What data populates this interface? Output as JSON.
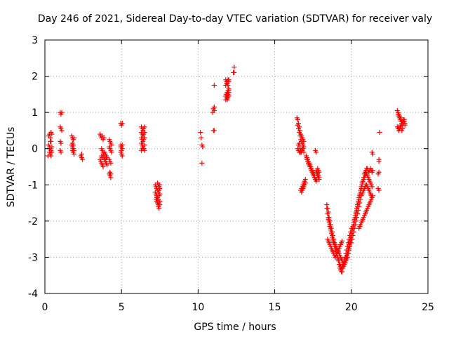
{
  "chart_data": {
    "type": "scatter",
    "title": "Day 246 of 2021, Sidereal Day-to-day VTEC variation (SDTVAR) for receiver valy",
    "xlabel": "GPS time / hours",
    "ylabel": "SDTVAR / TECUs",
    "xlim": [
      0,
      25
    ],
    "ylim": [
      -4,
      3
    ],
    "xticks": [
      0,
      5,
      10,
      15,
      20,
      25
    ],
    "yticks": [
      -4,
      -3,
      -2,
      -1,
      0,
      1,
      2,
      3
    ],
    "grid": true,
    "marker": "plus",
    "color": "#ff0000",
    "series": [
      {
        "name": "SDTVAR",
        "x": [
          0.2,
          0.25,
          0.3,
          0.35,
          0.4,
          0.45,
          0.25,
          0.3,
          0.35,
          0.4,
          0.45,
          0.3,
          0.35,
          0.4,
          0.45,
          0.3,
          0.35,
          0.4,
          1.0,
          1.05,
          1.1,
          1.0,
          1.05,
          1.1,
          1.0,
          1.05,
          1.0,
          1.05,
          1.75,
          1.8,
          1.85,
          1.9,
          1.75,
          1.8,
          1.85,
          1.9,
          1.8,
          1.85,
          1.9,
          1.8,
          1.85,
          2.35,
          2.4,
          2.45,
          2.4,
          3.6,
          3.65,
          3.7,
          3.75,
          3.8,
          3.85,
          3.9,
          3.95,
          4.0,
          4.05,
          3.6,
          3.65,
          3.7,
          3.75,
          3.8,
          3.85,
          3.9,
          3.95,
          4.0,
          4.05,
          3.7,
          3.75,
          3.8,
          3.85,
          3.9,
          3.95,
          4.0,
          3.7,
          3.75,
          3.8,
          3.85,
          4.2,
          4.25,
          4.3,
          4.35,
          4.2,
          4.25,
          4.3,
          4.35,
          4.2,
          4.25,
          4.3,
          4.2,
          4.25,
          4.3,
          4.25,
          4.3,
          4.95,
          5.0,
          5.05,
          4.95,
          5.0,
          5.05,
          4.95,
          5.0,
          5.05,
          4.95,
          5.0,
          5.05,
          6.3,
          6.35,
          6.4,
          6.45,
          6.5,
          6.3,
          6.35,
          6.4,
          6.45,
          6.5,
          6.3,
          6.35,
          6.4,
          6.45,
          6.5,
          6.3,
          6.35,
          6.4,
          6.45,
          6.5,
          6.3,
          6.35,
          6.4,
          6.45,
          6.5,
          7.2,
          7.25,
          7.3,
          7.35,
          7.4,
          7.45,
          7.5,
          7.2,
          7.25,
          7.3,
          7.35,
          7.4,
          7.45,
          7.5,
          7.25,
          7.3,
          7.35,
          7.4,
          7.45,
          7.5,
          7.3,
          7.35,
          7.4,
          7.45,
          7.5,
          7.35,
          7.4,
          7.45,
          7.5,
          10.15,
          10.2,
          10.25,
          10.3,
          10.25,
          10.95,
          11.0,
          11.05,
          11.05,
          11.05,
          11.0,
          11.05,
          11.0,
          11.8,
          11.85,
          11.9,
          11.95,
          12.0,
          11.8,
          11.85,
          11.9,
          11.95,
          12.0,
          11.8,
          11.85,
          11.9,
          11.95,
          12.0,
          11.8,
          11.85,
          11.9,
          11.95,
          12.0,
          11.85,
          11.9,
          11.95,
          12.0,
          11.85,
          11.9,
          11.95,
          12.0,
          11.9,
          11.95,
          12.0,
          12.3,
          12.35,
          12.35,
          16.45,
          16.5,
          16.55,
          16.6,
          16.65,
          16.7,
          16.75,
          16.8,
          16.85,
          16.9,
          16.5,
          16.55,
          16.6,
          16.65,
          16.7,
          16.75,
          16.8,
          16.85,
          16.9,
          16.5,
          16.55,
          16.6,
          16.65,
          16.7,
          16.75,
          16.8,
          16.85,
          16.9,
          16.55,
          16.6,
          16.65,
          16.7,
          16.75,
          16.8,
          16.7,
          16.75,
          16.8,
          16.85,
          16.9,
          16.95,
          17.0,
          16.75,
          16.8,
          16.85,
          16.9,
          16.95,
          17.0,
          17.05,
          17.1,
          17.15,
          17.2,
          17.25,
          17.3,
          17.35,
          17.4,
          17.45,
          17.5,
          17.55,
          17.6,
          17.1,
          17.15,
          17.2,
          17.25,
          17.3,
          17.35,
          17.4,
          17.45,
          17.5,
          17.55,
          17.6,
          17.65,
          17.2,
          17.25,
          17.3,
          17.35,
          17.4,
          17.45,
          17.5,
          17.55,
          17.6,
          17.65,
          17.7,
          17.75,
          17.65,
          17.7,
          17.75,
          17.8,
          17.85,
          17.9,
          17.7,
          17.75,
          17.8,
          17.85,
          17.9,
          17.75,
          17.8,
          17.85,
          17.9,
          17.8,
          17.85,
          18.4,
          18.45,
          18.5,
          18.55,
          18.6,
          18.65,
          18.7,
          18.75,
          18.8,
          18.85,
          18.9,
          18.95,
          19.0,
          19.05,
          19.1,
          19.15,
          19.2,
          19.25,
          19.3,
          19.35,
          19.4,
          19.45,
          19.5,
          19.55,
          19.6,
          19.65,
          19.7,
          19.75,
          19.8,
          19.85,
          19.9,
          19.95,
          20.0,
          18.4,
          18.45,
          18.5,
          18.55,
          18.6,
          18.65,
          18.7,
          18.75,
          18.8,
          18.85,
          18.9,
          18.95,
          19.0,
          19.05,
          19.1,
          19.15,
          19.2,
          19.25,
          19.3,
          19.35,
          19.4,
          19.45,
          19.5,
          19.55,
          19.6,
          19.65,
          19.7,
          19.75,
          19.8,
          19.85,
          19.9,
          19.95,
          20.0,
          18.5,
          18.55,
          18.6,
          18.65,
          18.7,
          18.75,
          18.8,
          18.85,
          18.9,
          18.95,
          19.0,
          19.05,
          19.1,
          19.15,
          19.2,
          19.25,
          19.3,
          19.35,
          19.4,
          19.45,
          19.5,
          19.55,
          19.6,
          19.65,
          19.7,
          19.75,
          19.8,
          19.85,
          19.9,
          18.45,
          18.5,
          18.55,
          18.6,
          18.65,
          18.7,
          18.75,
          18.8,
          18.85,
          18.9,
          18.95,
          19.0,
          19.05,
          19.1,
          19.15,
          19.2,
          19.25,
          19.3,
          19.35,
          19.4,
          19.7,
          19.75,
          19.8,
          19.85,
          19.9,
          19.95,
          20.0,
          20.05,
          20.1,
          20.15,
          20.2,
          20.25,
          20.3,
          20.35,
          20.4,
          20.45,
          20.5,
          20.55,
          20.6,
          20.65,
          20.7,
          20.75,
          20.8,
          20.85,
          20.9,
          20.95,
          21.0,
          21.05,
          21.1,
          21.15,
          21.2,
          21.25,
          21.3,
          21.35,
          21.4,
          19.8,
          19.85,
          19.9,
          19.95,
          20.0,
          20.05,
          20.1,
          20.15,
          20.2,
          20.25,
          20.3,
          20.35,
          20.4,
          20.45,
          20.5,
          20.55,
          20.6,
          20.65,
          20.7,
          20.75,
          20.8,
          20.85,
          20.9,
          20.95,
          21.0,
          21.05,
          21.1,
          21.15,
          21.2,
          21.25,
          21.3,
          21.35,
          20.0,
          20.05,
          20.1,
          20.15,
          20.2,
          20.25,
          20.3,
          20.35,
          20.4,
          20.45,
          20.5,
          20.55,
          20.6,
          20.65,
          20.7,
          20.75,
          20.8,
          20.85,
          20.9,
          20.95,
          21.0,
          21.05,
          21.1,
          21.15,
          21.2,
          21.25,
          21.3,
          21.35,
          20.5,
          20.55,
          20.6,
          20.65,
          20.7,
          20.75,
          20.8,
          20.85,
          20.9,
          20.95,
          21.0,
          21.05,
          21.1,
          21.15,
          21.2,
          21.25,
          21.3,
          21.35,
          21.4,
          21.35,
          21.4,
          21.85,
          21.8,
          21.8,
          21.75,
          21.8,
          21.75,
          21.8,
          23.0,
          23.05,
          23.1,
          23.15,
          23.2,
          23.25,
          23.3,
          23.35,
          23.4,
          23.45,
          23.5,
          23.05,
          23.1,
          23.15,
          23.2,
          23.25,
          23.3,
          23.35,
          23.4,
          23.45,
          23.5,
          23.1,
          23.15,
          23.2,
          23.25,
          23.3,
          23.35,
          23.4,
          23.45,
          23.0,
          23.05,
          23.1,
          23.15,
          23.2,
          23.25,
          23.3,
          23.35
        ],
        "y": [
          -0.2,
          0.35,
          0.4,
          0.3,
          0.2,
          0.4,
          0.1,
          0.05,
          0.0,
          -0.05,
          -0.1,
          -0.1,
          -0.15,
          -0.2,
          0.05,
          0.0,
          0.2,
          0.45,
          1.0,
          0.95,
          1.0,
          0.6,
          0.55,
          0.5,
          0.2,
          0.15,
          -0.05,
          -0.1,
          0.35,
          0.3,
          0.25,
          0.3,
          0.1,
          0.05,
          0.0,
          -0.05,
          -0.05,
          -0.1,
          -0.15,
          0.15,
          0.1,
          -0.2,
          -0.25,
          -0.3,
          -0.15,
          0.4,
          0.35,
          0.3,
          0.35,
          0.25,
          0.3,
          -0.1,
          -0.15,
          -0.2,
          -0.25,
          -0.3,
          -0.35,
          -0.4,
          -0.45,
          -0.5,
          -0.25,
          -0.3,
          -0.35,
          -0.4,
          -0.45,
          -0.2,
          -0.25,
          -0.15,
          -0.2,
          -0.3,
          -0.35,
          -0.25,
          0.0,
          -0.05,
          -0.1,
          -0.15,
          0.25,
          0.2,
          0.15,
          0.1,
          0.05,
          0.0,
          -0.05,
          -0.1,
          -0.3,
          -0.35,
          -0.4,
          -0.7,
          -0.75,
          -0.8,
          -0.65,
          -0.7,
          0.7,
          0.65,
          0.7,
          0.1,
          0.05,
          0.0,
          -0.1,
          -0.15,
          -0.2,
          0.05,
          -0.05,
          0.1,
          0.6,
          0.55,
          0.5,
          0.55,
          0.6,
          0.45,
          0.4,
          0.35,
          0.4,
          0.45,
          0.3,
          0.25,
          0.2,
          0.25,
          0.3,
          0.15,
          0.1,
          0.05,
          0.0,
          0.1,
          -0.05,
          0.0,
          0.05,
          0.0,
          -0.05,
          -1.0,
          -1.05,
          -1.1,
          -1.15,
          -1.2,
          -1.15,
          -1.1,
          -1.2,
          -1.25,
          -1.3,
          -1.35,
          -1.4,
          -1.3,
          -1.25,
          -1.4,
          -1.45,
          -1.5,
          -1.55,
          -1.5,
          -1.45,
          -1.35,
          -1.4,
          -1.6,
          -1.65,
          -1.55,
          -0.95,
          -1.0,
          -1.05,
          -1.0,
          0.45,
          0.3,
          0.1,
          0.05,
          -0.4,
          1.0,
          1.1,
          1.15,
          1.75,
          1.05,
          0.5,
          0.5,
          1.1,
          1.35,
          1.4,
          1.45,
          1.5,
          1.55,
          1.45,
          1.5,
          1.55,
          1.6,
          1.45,
          1.75,
          1.8,
          1.85,
          1.9,
          1.85,
          1.9,
          1.85,
          1.8,
          1.75,
          1.9,
          1.4,
          1.35,
          1.4,
          1.45,
          1.5,
          1.55,
          1.6,
          1.65,
          1.5,
          1.55,
          1.6,
          2.1,
          2.1,
          2.25,
          0.85,
          0.8,
          0.7,
          0.6,
          0.5,
          0.4,
          0.35,
          0.3,
          0.25,
          0.2,
          0.65,
          0.55,
          0.45,
          0.35,
          0.25,
          0.2,
          0.15,
          0.1,
          0.05,
          0.0,
          0.1,
          0.15,
          0.05,
          -0.05,
          -0.1,
          -0.05,
          0.0,
          -0.1,
          -0.05,
          -0.1,
          -0.05,
          -0.1,
          -0.05,
          0.0,
          -1.15,
          -1.1,
          -1.05,
          -1.0,
          -0.95,
          -0.9,
          -0.85,
          -1.2,
          -1.15,
          -1.1,
          -1.05,
          -1.0,
          -0.95,
          -0.2,
          -0.25,
          -0.3,
          -0.35,
          -0.4,
          -0.45,
          -0.5,
          -0.55,
          -0.6,
          -0.65,
          -0.7,
          -0.75,
          -0.3,
          -0.35,
          -0.4,
          -0.45,
          -0.5,
          -0.55,
          -0.6,
          -0.65,
          -0.7,
          -0.75,
          -0.8,
          -0.85,
          -0.4,
          -0.45,
          -0.5,
          -0.55,
          -0.6,
          -0.65,
          -0.7,
          -0.75,
          -0.8,
          -0.85,
          -0.9,
          -0.85,
          -0.05,
          -0.1,
          -0.65,
          -0.7,
          -0.75,
          -0.8,
          -0.6,
          -0.65,
          -0.55,
          -0.6,
          -0.65,
          -0.7,
          -0.75,
          -0.8,
          -0.85,
          -0.7,
          -0.75,
          -1.55,
          -1.65,
          -1.75,
          -1.9,
          -2.0,
          -2.1,
          -2.2,
          -2.3,
          -2.4,
          -2.5,
          -2.6,
          -2.7,
          -2.8,
          -2.9,
          -3.0,
          -3.1,
          -3.2,
          -3.3,
          -3.35,
          -3.4,
          -3.4,
          -3.3,
          -3.25,
          -3.2,
          -3.15,
          -3.1,
          -3.05,
          -3.0,
          -2.9,
          -2.8,
          -2.7,
          -2.6,
          -2.5,
          -1.65,
          -1.8,
          -1.95,
          -2.05,
          -2.15,
          -2.25,
          -2.35,
          -2.45,
          -2.55,
          -2.6,
          -2.7,
          -2.8,
          -2.85,
          -2.9,
          -3.0,
          -3.05,
          -3.1,
          -3.2,
          -3.25,
          -3.3,
          -3.25,
          -3.2,
          -3.15,
          -3.05,
          -3.0,
          -2.9,
          -2.8,
          -2.7,
          -2.6,
          -2.5,
          -2.4,
          -2.3,
          -2.2,
          -1.9,
          -2.0,
          -2.1,
          -2.2,
          -2.3,
          -2.4,
          -2.5,
          -2.55,
          -2.6,
          -2.65,
          -2.7,
          -2.75,
          -2.8,
          -2.85,
          -2.9,
          -2.95,
          -3.0,
          -3.05,
          -3.1,
          -3.15,
          -3.2,
          -3.15,
          -3.1,
          -3.0,
          -2.95,
          -2.9,
          -2.8,
          -2.75,
          -2.7,
          -2.5,
          -2.55,
          -2.6,
          -2.65,
          -2.7,
          -2.75,
          -2.8,
          -2.85,
          -2.9,
          -2.95,
          -3.0,
          -2.95,
          -2.9,
          -2.85,
          -2.8,
          -2.75,
          -2.7,
          -2.65,
          -2.6,
          -2.55,
          -3.0,
          -2.9,
          -2.8,
          -2.7,
          -2.6,
          -2.5,
          -2.4,
          -2.3,
          -2.2,
          -2.1,
          -2.0,
          -1.9,
          -1.8,
          -1.7,
          -1.6,
          -1.5,
          -1.4,
          -1.3,
          -1.2,
          -1.1,
          -1.0,
          -0.9,
          -0.8,
          -0.7,
          -0.65,
          -0.6,
          -0.55,
          -0.55,
          -0.6,
          -0.65,
          -0.6,
          -0.55,
          -0.6,
          -0.65,
          -0.6,
          -2.75,
          -2.65,
          -2.55,
          -2.45,
          -2.35,
          -2.25,
          -2.15,
          -2.05,
          -1.95,
          -1.85,
          -1.75,
          -1.65,
          -1.55,
          -1.45,
          -1.35,
          -1.25,
          -1.15,
          -1.05,
          -0.95,
          -0.9,
          -0.85,
          -0.8,
          -0.75,
          -0.7,
          -0.7,
          -0.75,
          -0.8,
          -0.85,
          -0.9,
          -0.95,
          -1.0,
          -1.05,
          -2.6,
          -2.5,
          -2.4,
          -2.3,
          -2.2,
          -2.1,
          -2.0,
          -1.9,
          -1.8,
          -1.7,
          -1.6,
          -1.5,
          -1.4,
          -1.3,
          -1.25,
          -1.2,
          -1.15,
          -1.1,
          -1.05,
          -1.0,
          -1.0,
          -1.05,
          -1.1,
          -1.15,
          -1.2,
          -1.25,
          -1.3,
          -1.35,
          -2.2,
          -2.15,
          -2.1,
          -2.05,
          -2.0,
          -1.95,
          -1.9,
          -1.85,
          -1.8,
          -1.75,
          -1.7,
          -1.65,
          -1.6,
          -1.55,
          -1.5,
          -1.45,
          -1.4,
          -1.35,
          -1.3,
          -0.1,
          -0.15,
          0.45,
          -0.3,
          -0.35,
          -0.7,
          -0.65,
          -1.1,
          -1.15,
          1.05,
          1.0,
          0.95,
          0.9,
          0.85,
          0.8,
          0.75,
          0.7,
          0.75,
          0.8,
          0.7,
          0.95,
          0.9,
          0.85,
          0.8,
          0.75,
          0.7,
          0.65,
          0.7,
          0.75,
          0.65,
          0.6,
          0.55,
          0.6,
          0.65,
          0.7,
          0.75,
          0.8,
          0.75,
          0.6,
          0.55,
          0.5,
          0.55,
          0.6,
          0.55,
          0.5,
          0.55
        ]
      }
    ]
  }
}
